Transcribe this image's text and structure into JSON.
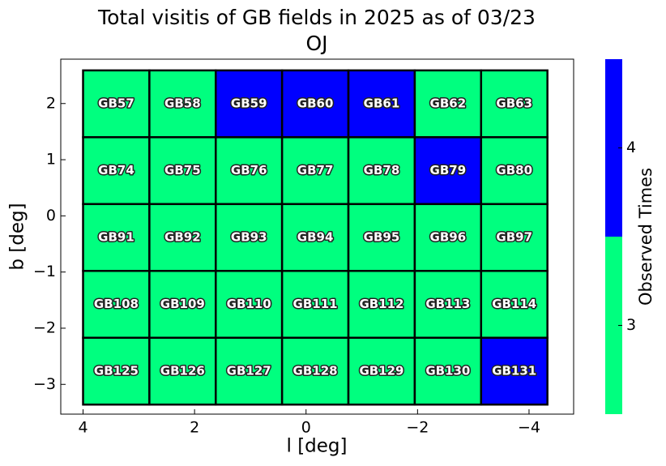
{
  "chart_data": {
    "type": "heatmap",
    "title": "Total visitis of GB fields in 2025 as of 03/23",
    "subtitle": "OJ",
    "x_label": "l [deg]",
    "y_label": "b [deg]",
    "xlim": [
      4.4,
      -4.8
    ],
    "ylim": [
      -3.53,
      2.79
    ],
    "xticks": [
      4,
      2,
      0,
      {
        "value": -2,
        "label": "−2"
      },
      {
        "value": -4,
        "label": "−4"
      }
    ],
    "yticks": [
      2,
      1,
      0,
      {
        "value": -1,
        "label": "−1"
      },
      {
        "value": -2,
        "label": "−2"
      },
      {
        "value": -3,
        "label": "−3"
      }
    ],
    "x_edges": [
      4.0,
      2.81,
      1.62,
      0.43,
      -0.76,
      -1.95,
      -3.14,
      -4.33
    ],
    "y_edges": [
      2.59,
      1.4,
      0.21,
      -0.98,
      -2.17,
      -3.36
    ],
    "cell_labels": [
      [
        "GB57",
        "GB58",
        "GB59",
        "GB60",
        "GB61",
        "GB62",
        "GB63"
      ],
      [
        "GB74",
        "GB75",
        "GB76",
        "GB77",
        "GB78",
        "GB79",
        "GB80"
      ],
      [
        "GB91",
        "GB92",
        "GB93",
        "GB94",
        "GB95",
        "GB96",
        "GB97"
      ],
      [
        "GB108",
        "GB109",
        "GB110",
        "GB111",
        "GB112",
        "GB113",
        "GB114"
      ],
      [
        "GB125",
        "GB126",
        "GB127",
        "GB128",
        "GB129",
        "GB130",
        "GB131"
      ]
    ],
    "values": [
      [
        3,
        3,
        4,
        4,
        4,
        3,
        3
      ],
      [
        3,
        3,
        3,
        3,
        3,
        4,
        3
      ],
      [
        3,
        3,
        3,
        3,
        3,
        3,
        3
      ],
      [
        3,
        3,
        3,
        3,
        3,
        3,
        3
      ],
      [
        3,
        3,
        3,
        3,
        3,
        3,
        4
      ]
    ],
    "colorbar": {
      "label": "Observed Times",
      "lim": [
        2.5,
        4.5
      ],
      "ticks": [
        3,
        4
      ],
      "colors": [
        "#00ff7f",
        "#0000ff"
      ]
    }
  }
}
